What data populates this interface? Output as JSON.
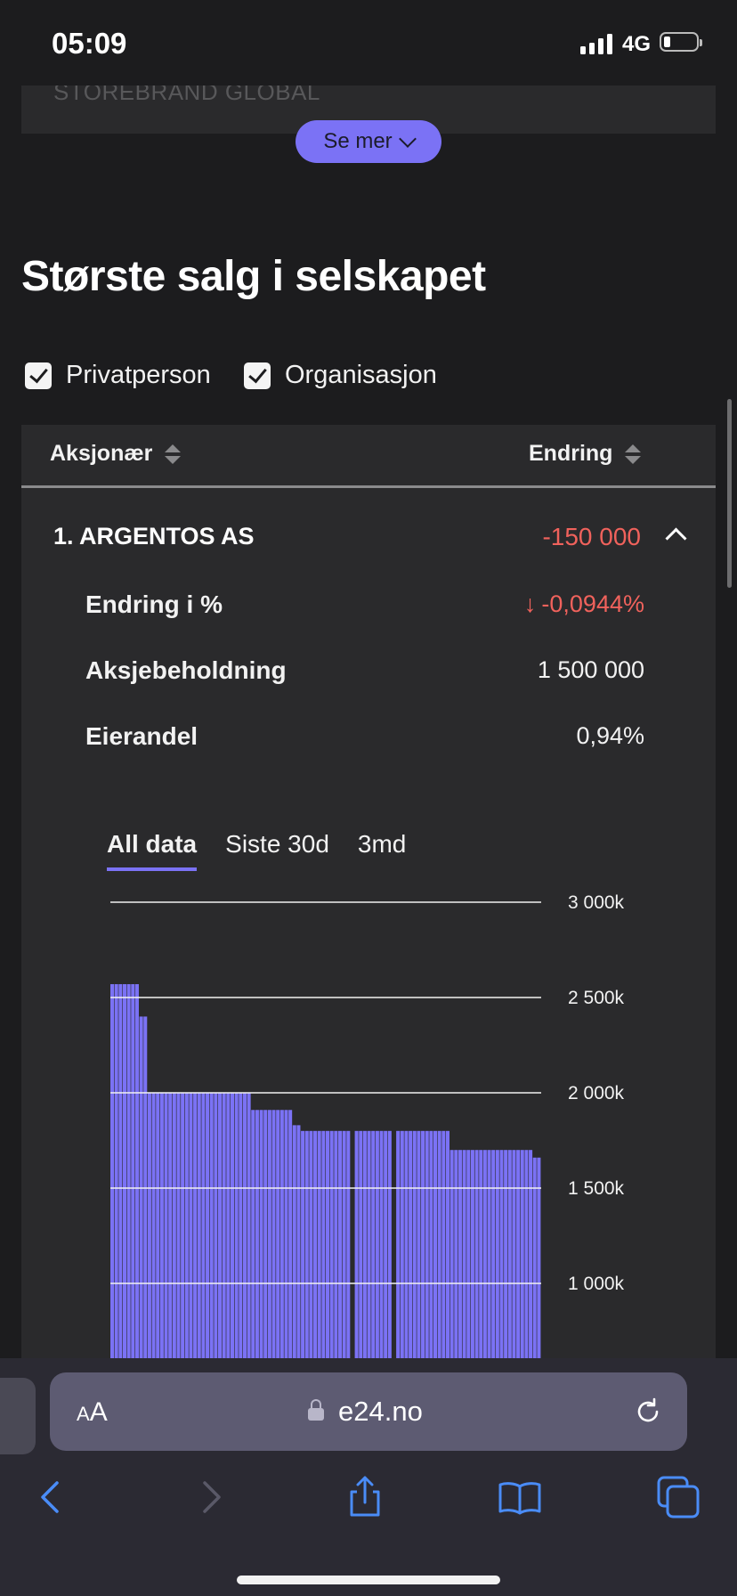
{
  "status": {
    "time": "05:09",
    "network": "4G"
  },
  "previous_card": {
    "text": "STOREBRAND GLOBAL"
  },
  "see_more": {
    "label": "Se mer"
  },
  "section": {
    "title": "Største salg i selskapet"
  },
  "filters": [
    {
      "label": "Privatperson",
      "checked": true
    },
    {
      "label": "Organisasjon",
      "checked": true
    }
  ],
  "table": {
    "columns": {
      "shareholder": "Aksjonær",
      "change": "Endring"
    },
    "row": {
      "title": "1. ARGENTOS AS",
      "change": "-150 000",
      "details": {
        "change_pct_label": "Endring i %",
        "change_pct_value": "-0,0944%",
        "holding_label": "Aksjebeholdning",
        "holding_value": "1 500 000",
        "ownership_label": "Eierandel",
        "ownership_value": "0,94%"
      }
    }
  },
  "chart_tabs": [
    "All data",
    "Siste 30d",
    "3md"
  ],
  "chart_data": {
    "type": "bar",
    "y_tick_labels": [
      "3 000k",
      "2 500k",
      "2 000k",
      "1 500k",
      "1 000k"
    ],
    "y_tick_values": [
      3000,
      2500,
      2000,
      1500,
      1000
    ],
    "ylim": [
      800,
      3000
    ],
    "color": "#7b72f5",
    "segments": [
      {
        "count": 7,
        "value": 2570
      },
      {
        "count": 2,
        "value": 2400
      },
      {
        "count": 25,
        "value": 2000
      },
      {
        "count": 10,
        "value": 1910
      },
      {
        "count": 2,
        "value": 1830
      },
      {
        "count": 12,
        "value": 1800
      },
      {
        "count": 1,
        "gap": true
      },
      {
        "count": 9,
        "value": 1800
      },
      {
        "count": 1,
        "gap": true
      },
      {
        "count": 13,
        "value": 1800
      },
      {
        "count": 20,
        "value": 1700
      },
      {
        "count": 2,
        "value": 1660
      }
    ]
  },
  "browser": {
    "text_size_btn": "AA",
    "url": "e24.no"
  },
  "colors": {
    "accent": "#7b72f5",
    "negative": "#f0625c",
    "background": "#1c1c1e",
    "panel": "#2a2a2c"
  }
}
